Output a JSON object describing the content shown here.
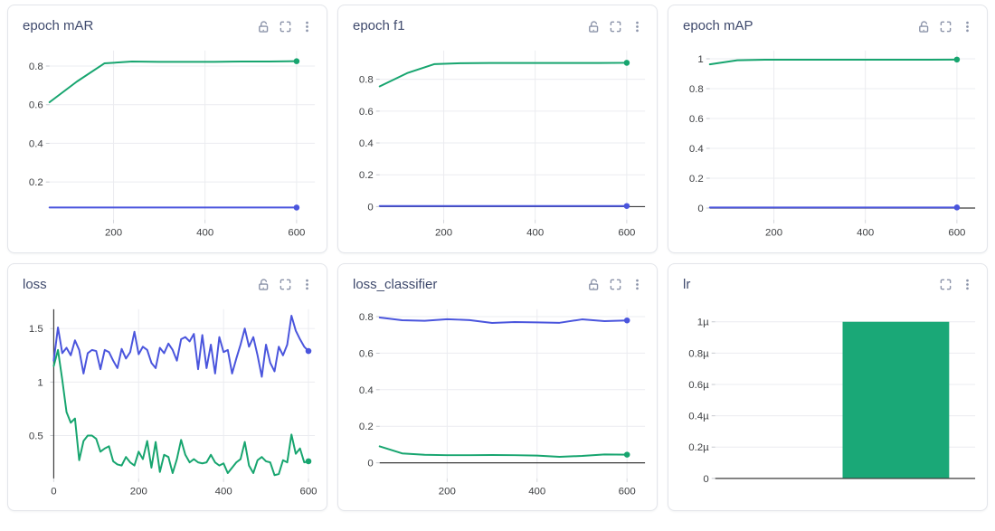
{
  "colors": {
    "green": "#17a56f",
    "blue": "#4a55dd",
    "bar": "#1aa877",
    "grid_line": "#ebecf0",
    "axis_line": "#3c3c3c",
    "tick_label": "#3d3f42",
    "title_text": "#3f4a6d",
    "icon": "#8b93a9",
    "panel_border": "#e3e5ea"
  },
  "chart_data": [
    {
      "title": "epoch mAR",
      "type": "line",
      "header_icons": [
        "unlock-icon",
        "fullscreen-icon",
        "kebab-menu-icon"
      ],
      "legend_position": "none",
      "x_range": [
        60,
        640
      ],
      "y_range": [
        0.005,
        0.88
      ],
      "x_ticks": [
        {
          "v": 200,
          "label": "200"
        },
        {
          "v": 400,
          "label": "400"
        },
        {
          "v": 600,
          "label": "600"
        }
      ],
      "y_ticks": [
        {
          "v": 0.2,
          "label": "0.2"
        },
        {
          "v": 0.4,
          "label": "0.4"
        },
        {
          "v": 0.6,
          "label": "0.6"
        },
        {
          "v": 0.8,
          "label": "0.8"
        }
      ],
      "baseline": null,
      "series": [
        {
          "name": "blue",
          "color": "blue",
          "end_dot": true,
          "x": [
            60,
            120,
            180,
            240,
            300,
            360,
            420,
            480,
            540,
            600
          ],
          "y": [
            0.068,
            0.068,
            0.068,
            0.068,
            0.068,
            0.068,
            0.068,
            0.068,
            0.068,
            0.068
          ]
        },
        {
          "name": "green",
          "color": "green",
          "end_dot": true,
          "x": [
            60,
            120,
            180,
            240,
            300,
            360,
            420,
            480,
            540,
            600
          ],
          "y": [
            0.613,
            0.72,
            0.814,
            0.823,
            0.822,
            0.822,
            0.822,
            0.823,
            0.823,
            0.825
          ]
        }
      ]
    },
    {
      "title": "epoch f1",
      "type": "line",
      "header_icons": [
        "unlock-icon",
        "fullscreen-icon",
        "kebab-menu-icon"
      ],
      "legend_position": "none",
      "x_range": [
        60,
        640
      ],
      "y_range": [
        -0.082,
        0.98
      ],
      "x_ticks": [
        {
          "v": 200,
          "label": "200"
        },
        {
          "v": 400,
          "label": "400"
        },
        {
          "v": 600,
          "label": "600"
        }
      ],
      "y_ticks": [
        {
          "v": 0,
          "label": "0"
        },
        {
          "v": 0.2,
          "label": "0.2"
        },
        {
          "v": 0.4,
          "label": "0.4"
        },
        {
          "v": 0.6,
          "label": "0.6"
        },
        {
          "v": 0.8,
          "label": "0.8"
        }
      ],
      "baseline": "y0",
      "series": [
        {
          "name": "blue",
          "color": "blue",
          "end_dot": true,
          "x": [
            60,
            120,
            180,
            240,
            300,
            360,
            420,
            480,
            540,
            600
          ],
          "y": [
            0.004,
            0.004,
            0.004,
            0.004,
            0.004,
            0.004,
            0.004,
            0.004,
            0.004,
            0.004
          ]
        },
        {
          "name": "green",
          "color": "green",
          "end_dot": true,
          "x": [
            60,
            120,
            180,
            240,
            300,
            360,
            420,
            480,
            540,
            600
          ],
          "y": [
            0.755,
            0.838,
            0.895,
            0.901,
            0.902,
            0.902,
            0.902,
            0.902,
            0.902,
            0.903
          ]
        }
      ]
    },
    {
      "title": "epoch mAP",
      "type": "line",
      "header_icons": [
        "unlock-icon",
        "fullscreen-icon",
        "kebab-menu-icon"
      ],
      "legend_position": "none",
      "x_range": [
        60,
        640
      ],
      "y_range": [
        -0.078,
        1.055
      ],
      "x_ticks": [
        {
          "v": 200,
          "label": "200"
        },
        {
          "v": 400,
          "label": "400"
        },
        {
          "v": 600,
          "label": "600"
        }
      ],
      "y_ticks": [
        {
          "v": 0,
          "label": "0"
        },
        {
          "v": 0.2,
          "label": "0.2"
        },
        {
          "v": 0.4,
          "label": "0.4"
        },
        {
          "v": 0.6,
          "label": "0.6"
        },
        {
          "v": 0.8,
          "label": "0.8"
        },
        {
          "v": 1,
          "label": "1"
        }
      ],
      "baseline": "y0",
      "series": [
        {
          "name": "blue",
          "color": "blue",
          "end_dot": true,
          "x": [
            60,
            120,
            180,
            240,
            300,
            360,
            420,
            480,
            540,
            600
          ],
          "y": [
            0.004,
            0.004,
            0.004,
            0.004,
            0.004,
            0.004,
            0.004,
            0.004,
            0.004,
            0.004
          ]
        },
        {
          "name": "green",
          "color": "green",
          "end_dot": true,
          "x": [
            60,
            120,
            180,
            240,
            300,
            360,
            420,
            480,
            540,
            600
          ],
          "y": [
            0.963,
            0.99,
            0.994,
            0.994,
            0.994,
            0.994,
            0.994,
            0.994,
            0.994,
            0.995
          ]
        }
      ]
    },
    {
      "title": "loss",
      "type": "line",
      "header_icons": [
        "unlock-icon",
        "fullscreen-icon",
        "kebab-menu-icon"
      ],
      "legend_position": "none",
      "x_range": [
        -10,
        615
      ],
      "y_range": [
        0.1,
        1.68
      ],
      "x_ticks": [
        {
          "v": 0,
          "label": "0"
        },
        {
          "v": 200,
          "label": "200"
        },
        {
          "v": 400,
          "label": "400"
        },
        {
          "v": 600,
          "label": "600"
        }
      ],
      "y_ticks": [
        {
          "v": 0.5,
          "label": "0.5"
        },
        {
          "v": 1,
          "label": "1"
        },
        {
          "v": 1.5,
          "label": "1.5"
        }
      ],
      "baseline": "x0",
      "series": [
        {
          "name": "blue",
          "color": "blue",
          "end_dot": true,
          "x": [
            0,
            10,
            20,
            30,
            40,
            50,
            60,
            70,
            80,
            90,
            100,
            110,
            120,
            130,
            140,
            150,
            160,
            170,
            180,
            190,
            200,
            210,
            220,
            230,
            240,
            250,
            260,
            270,
            280,
            290,
            300,
            310,
            320,
            330,
            340,
            350,
            360,
            370,
            380,
            390,
            400,
            410,
            420,
            430,
            440,
            450,
            460,
            470,
            480,
            490,
            500,
            510,
            520,
            530,
            540,
            550,
            560,
            570,
            580,
            590,
            600
          ],
          "y": [
            1.2,
            1.51,
            1.27,
            1.32,
            1.25,
            1.39,
            1.3,
            1.08,
            1.27,
            1.3,
            1.29,
            1.12,
            1.3,
            1.28,
            1.2,
            1.13,
            1.31,
            1.22,
            1.28,
            1.47,
            1.26,
            1.33,
            1.3,
            1.18,
            1.13,
            1.32,
            1.27,
            1.36,
            1.3,
            1.2,
            1.4,
            1.42,
            1.38,
            1.45,
            1.12,
            1.44,
            1.13,
            1.35,
            1.08,
            1.42,
            1.28,
            1.3,
            1.08,
            1.22,
            1.35,
            1.5,
            1.33,
            1.42,
            1.25,
            1.05,
            1.35,
            1.18,
            1.1,
            1.33,
            1.25,
            1.35,
            1.62,
            1.48,
            1.4,
            1.33,
            1.29
          ]
        },
        {
          "name": "green",
          "color": "green",
          "end_dot": true,
          "x": [
            0,
            10,
            20,
            30,
            40,
            50,
            60,
            70,
            80,
            90,
            100,
            110,
            120,
            130,
            140,
            150,
            160,
            170,
            180,
            190,
            200,
            210,
            220,
            230,
            240,
            250,
            260,
            270,
            280,
            290,
            300,
            310,
            320,
            330,
            340,
            350,
            360,
            370,
            380,
            390,
            400,
            410,
            420,
            430,
            440,
            450,
            460,
            470,
            480,
            490,
            500,
            510,
            520,
            530,
            540,
            550,
            560,
            570,
            580,
            590,
            600
          ],
          "y": [
            1.15,
            1.3,
            1.02,
            0.72,
            0.62,
            0.66,
            0.27,
            0.45,
            0.5,
            0.5,
            0.47,
            0.35,
            0.38,
            0.4,
            0.26,
            0.23,
            0.22,
            0.3,
            0.25,
            0.22,
            0.35,
            0.28,
            0.45,
            0.2,
            0.44,
            0.16,
            0.32,
            0.3,
            0.15,
            0.28,
            0.46,
            0.32,
            0.25,
            0.28,
            0.25,
            0.24,
            0.25,
            0.32,
            0.25,
            0.22,
            0.24,
            0.15,
            0.2,
            0.25,
            0.28,
            0.44,
            0.22,
            0.15,
            0.27,
            0.3,
            0.26,
            0.25,
            0.13,
            0.14,
            0.27,
            0.25,
            0.51,
            0.33,
            0.38,
            0.25,
            0.26
          ]
        }
      ]
    },
    {
      "title": "loss_classifier",
      "type": "line",
      "header_icons": [
        "unlock-icon",
        "fullscreen-icon",
        "kebab-menu-icon"
      ],
      "legend_position": "none",
      "x_range": [
        50,
        640
      ],
      "y_range": [
        -0.085,
        0.84
      ],
      "x_ticks": [
        {
          "v": 200,
          "label": "200"
        },
        {
          "v": 400,
          "label": "400"
        },
        {
          "v": 600,
          "label": "600"
        }
      ],
      "y_ticks": [
        {
          "v": 0,
          "label": "0"
        },
        {
          "v": 0.2,
          "label": "0.2"
        },
        {
          "v": 0.4,
          "label": "0.4"
        },
        {
          "v": 0.6,
          "label": "0.6"
        },
        {
          "v": 0.8,
          "label": "0.8"
        }
      ],
      "baseline": "y0",
      "series": [
        {
          "name": "blue",
          "color": "blue",
          "end_dot": true,
          "x": [
            50,
            100,
            150,
            200,
            250,
            300,
            350,
            400,
            450,
            500,
            550,
            600
          ],
          "y": [
            0.795,
            0.78,
            0.777,
            0.786,
            0.781,
            0.765,
            0.77,
            0.768,
            0.766,
            0.785,
            0.775,
            0.779
          ]
        },
        {
          "name": "green",
          "color": "green",
          "end_dot": true,
          "x": [
            50,
            100,
            150,
            200,
            250,
            300,
            350,
            400,
            450,
            500,
            550,
            600
          ],
          "y": [
            0.09,
            0.052,
            0.044,
            0.042,
            0.042,
            0.043,
            0.042,
            0.04,
            0.033,
            0.038,
            0.046,
            0.045
          ]
        }
      ]
    },
    {
      "title": "lr",
      "type": "bar",
      "header_icons": [
        "fullscreen-icon",
        "kebab-menu-icon"
      ],
      "legend_position": "none",
      "y_unit": "µ (1e-6)",
      "x_range": [
        0,
        1
      ],
      "y_range": [
        0,
        1.08
      ],
      "x_ticks": [],
      "y_ticks": [
        {
          "v": 0,
          "label": "0"
        },
        {
          "v": 0.2,
          "label": "0.2µ"
        },
        {
          "v": 0.4,
          "label": "0.4µ"
        },
        {
          "v": 0.6,
          "label": "0.6µ"
        },
        {
          "v": 0.8,
          "label": "0.8µ"
        },
        {
          "v": 1,
          "label": "1µ"
        }
      ],
      "baseline": "y0",
      "ml": 52,
      "bars": [
        {
          "value": 1.0,
          "x_span_frac": [
            0.49,
            0.9
          ]
        }
      ],
      "series": []
    }
  ]
}
